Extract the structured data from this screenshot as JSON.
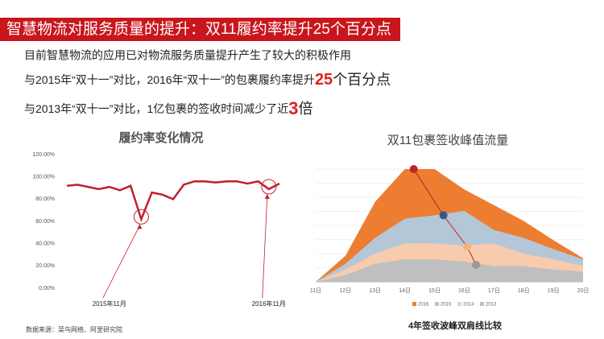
{
  "header": {
    "title": "智慧物流对服务质量的提升：双11履约率提升25个百分点"
  },
  "points": [
    {
      "text": "目前智慧物流的应用已对物流服务质量提升产生了较大的积极作用"
    },
    {
      "text": "与2015年“双十一”对比，2016年“双十一”的包裹履约率提升",
      "highlight": "25",
      "suffix": "个百分点"
    },
    {
      "text": "与2013年“双十一”对比，1亿包裹的签收时间减少了近",
      "highlight": "3",
      "suffix": "倍"
    }
  ],
  "source": "数据来源：菜鸟网络、阿里研究院",
  "chart_data": [
    {
      "type": "line",
      "title": "履约率变化情况",
      "categories": [
        null,
        null,
        null,
        null,
        "2015年11月",
        null,
        null,
        null,
        null,
        null,
        null,
        null,
        null,
        null,
        null,
        null,
        null,
        null,
        null,
        "2016年11月",
        null
      ],
      "values": [
        92,
        93,
        91,
        89,
        91,
        88,
        92,
        62,
        86,
        84,
        80,
        93,
        96,
        96,
        95,
        96,
        96,
        94,
        96,
        89,
        94
      ],
      "color": "#c0202a",
      "ylim": [
        0,
        120
      ],
      "yticks": [
        {
          "value": 0,
          "label": "0.00%"
        },
        {
          "value": 20,
          "label": "20.00%"
        },
        {
          "value": 40,
          "label": "40.00%"
        },
        {
          "value": 60,
          "label": "60.00%"
        },
        {
          "value": 80,
          "label": "80.00%"
        },
        {
          "value": 100,
          "label": "100.00%"
        },
        {
          "value": 120,
          "label": "120.00%"
        }
      ],
      "grid": false
    },
    {
      "type": "area",
      "title": "双11包裹签收峰值流量",
      "x": [
        11,
        12,
        13,
        14,
        15,
        16,
        17,
        18,
        19,
        20
      ],
      "xlim": [
        11,
        20
      ],
      "xticks": [
        {
          "value": 11,
          "label": "11日"
        },
        {
          "value": 12,
          "label": "12日"
        },
        {
          "value": 13,
          "label": "13日"
        },
        {
          "value": 14,
          "label": "14日"
        },
        {
          "value": 15,
          "label": "15日"
        },
        {
          "value": 16,
          "label": "16日"
        },
        {
          "value": 17,
          "label": "17日"
        },
        {
          "value": 18,
          "label": "18日"
        },
        {
          "value": 19,
          "label": "19日"
        },
        {
          "value": 20,
          "label": "20日"
        }
      ],
      "ylim": [
        0,
        100
      ],
      "grid": true,
      "legend": "bottom",
      "series": [
        {
          "name": "2016",
          "color": "#ed7d31",
          "values": [
            0,
            23,
            71,
            100,
            100,
            82,
            68,
            54,
            37,
            21
          ]
        },
        {
          "name": "2015",
          "color": "#b4c7d9",
          "values": [
            0,
            16,
            39,
            56,
            59,
            63,
            46,
            39,
            29,
            20
          ]
        },
        {
          "name": "2014",
          "color": "#f8cbad",
          "values": [
            0,
            11,
            25,
            34,
            34,
            32,
            34,
            25,
            20,
            14
          ]
        },
        {
          "name": "2013",
          "color": "#bfbfbf",
          "values": [
            0,
            6,
            16,
            20,
            20,
            18,
            14,
            14,
            11,
            9
          ]
        }
      ],
      "peaks": {
        "x": [
          14.3,
          15.3,
          16.1,
          16.4
        ],
        "values": [
          100,
          59,
          31,
          15
        ],
        "colors": [
          "#c0202a",
          "#2e5b8a",
          "#f4b183",
          "#999999"
        ]
      },
      "caption": "4年签收波峰双肩线比较"
    }
  ]
}
